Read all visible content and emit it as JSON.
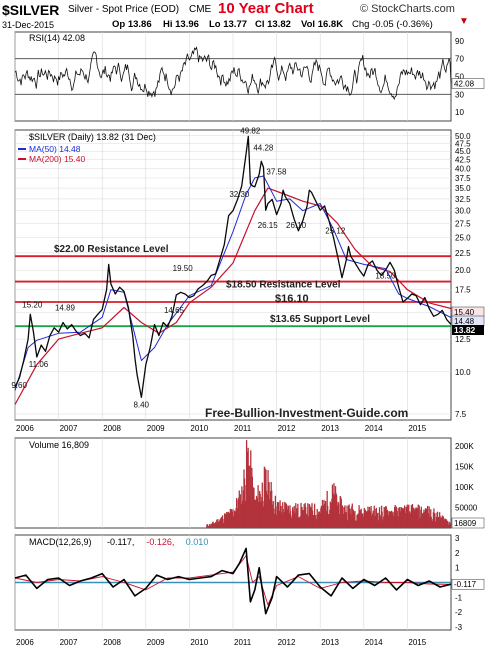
{
  "header": {
    "symbol": "$SILVER",
    "description": "Silver - Spot Price (EOD)",
    "exchange": "CME",
    "date": "31-Dec-2015",
    "chart_title": "10 Year Chart",
    "watermark": "© StockCharts.com",
    "quote": {
      "open": "Op 13.86",
      "high": "Hi 13.96",
      "low": "Lo 13.77",
      "close": "Cl 13.82",
      "volume": "Vol 16.8K",
      "change": "Chg -0.05 (-0.36%)"
    }
  },
  "site": "Free-Bullion-Investment-Guide.com",
  "colors": {
    "price": "#0a0a0a",
    "ma50": "#1f2bd6",
    "ma200": "#c8102e",
    "resistance": "#d81e2b",
    "support": "#1aa34a",
    "volume": "#b3333c",
    "macd": "#000000",
    "signal": "#c8102e",
    "histogram": "#3a8fb5",
    "grid": "#d9d9d9",
    "title": "#e0001b"
  },
  "chart_data": [
    {
      "type": "line",
      "panel": "rsi",
      "title": "RSI(14) 42.08",
      "ylim": [
        0,
        100
      ],
      "yticks": [
        10,
        30,
        50,
        70,
        90
      ],
      "reference_lines": [
        30,
        70
      ],
      "last_value": 42.08,
      "last_label": "42.08"
    },
    {
      "type": "line",
      "panel": "price",
      "title": "$SILVER (Daily) 13.82 (31 Dec)",
      "legend": [
        {
          "name": "MA(50) 14.48",
          "color": "#1f2bd6"
        },
        {
          "name": "MA(200) 15.40",
          "color": "#c8102e"
        }
      ],
      "scale": "log",
      "ylim": [
        7.2,
        52
      ],
      "yticks": [
        7.5,
        10.0,
        12.5,
        15.0,
        17.5,
        20.0,
        22.5,
        25.0,
        27.5,
        30.0,
        32.5,
        35.0,
        37.5,
        40.0,
        42.5,
        45.0,
        47.5,
        50.0
      ],
      "xlim": [
        2006.0,
        2016.0
      ],
      "x_tick_labels": [
        "2006",
        "2007",
        "2008",
        "2009",
        "2010",
        "2011",
        "2012",
        "2013",
        "2014",
        "2015"
      ],
      "series": [
        {
          "name": "$SILVER",
          "x": [
            2006.0,
            2006.1,
            2006.2,
            2006.3,
            2006.35,
            2006.42,
            2006.5,
            2006.6,
            2006.7,
            2006.8,
            2006.9,
            2007.0,
            2007.1,
            2007.2,
            2007.3,
            2007.4,
            2007.5,
            2007.6,
            2007.7,
            2007.8,
            2007.9,
            2008.0,
            2008.1,
            2008.15,
            2008.2,
            2008.3,
            2008.4,
            2008.5,
            2008.6,
            2008.7,
            2008.75,
            2008.8,
            2008.9,
            2009.0,
            2009.1,
            2009.2,
            2009.3,
            2009.4,
            2009.5,
            2009.6,
            2009.7,
            2009.8,
            2009.9,
            2010.0,
            2010.1,
            2010.2,
            2010.3,
            2010.4,
            2010.5,
            2010.6,
            2010.7,
            2010.8,
            2010.9,
            2011.0,
            2011.1,
            2011.2,
            2011.3,
            2011.35,
            2011.4,
            2011.45,
            2011.5,
            2011.6,
            2011.65,
            2011.7,
            2011.75,
            2011.8,
            2011.9,
            2012.0,
            2012.1,
            2012.15,
            2012.2,
            2012.3,
            2012.4,
            2012.5,
            2012.6,
            2012.7,
            2012.75,
            2012.8,
            2012.9,
            2013.0,
            2013.1,
            2013.2,
            2013.3,
            2013.4,
            2013.5,
            2013.6,
            2013.65,
            2013.7,
            2013.8,
            2013.9,
            2014.0,
            2014.1,
            2014.2,
            2014.3,
            2014.4,
            2014.5,
            2014.6,
            2014.7,
            2014.8,
            2014.9,
            2015.0,
            2015.1,
            2015.2,
            2015.3,
            2015.4,
            2015.5,
            2015.6,
            2015.7,
            2015.8,
            2015.9,
            2016.0
          ],
          "values": [
            9.0,
            9.6,
            10.8,
            12.5,
            14.8,
            13.2,
            11.06,
            12.0,
            11.5,
            12.8,
            13.5,
            13.1,
            14.0,
            13.4,
            13.8,
            13.2,
            12.8,
            13.0,
            12.6,
            14.3,
            14.8,
            15.3,
            17.5,
            20.8,
            18.2,
            17.0,
            17.8,
            17.3,
            15.5,
            12.8,
            11.0,
            9.8,
            8.4,
            10.5,
            11.8,
            13.8,
            12.8,
            14.0,
            13.6,
            14.6,
            16.9,
            17.2,
            17.0,
            16.6,
            16.8,
            17.6,
            18.0,
            18.5,
            19.3,
            19.5,
            21.5,
            23.8,
            29.0,
            30.0,
            32.3,
            35.5,
            44.28,
            49.82,
            36.0,
            35.5,
            35.3,
            38.5,
            42.0,
            40.3,
            30.1,
            31.5,
            32.4,
            29.2,
            31.5,
            34.5,
            33.0,
            31.5,
            28.4,
            26.15,
            28.0,
            31.0,
            34.5,
            34.0,
            32.0,
            30.1,
            31.0,
            28.1,
            25.12,
            22.0,
            19.0,
            21.5,
            23.5,
            22.0,
            21.0,
            20.0,
            19.2,
            20.8,
            21.3,
            20.0,
            19.3,
            20.0,
            21.1,
            20.0,
            17.8,
            16.1,
            16.5,
            17.0,
            16.8,
            15.8,
            16.6,
            15.4,
            14.6,
            14.8,
            15.2,
            14.3,
            13.82
          ]
        },
        {
          "name": "MA(50) 14.48",
          "x": [
            2006.0,
            2006.3,
            2006.5,
            2007.0,
            2007.5,
            2008.0,
            2008.2,
            2008.5,
            2008.9,
            2009.2,
            2009.5,
            2010.0,
            2010.5,
            2011.0,
            2011.3,
            2011.5,
            2011.7,
            2012.0,
            2012.3,
            2012.6,
            2013.0,
            2013.3,
            2013.6,
            2014.0,
            2014.5,
            2014.8,
            2015.0,
            2015.5,
            2016.0
          ],
          "values": [
            8.8,
            11.8,
            12.4,
            13.0,
            13.1,
            14.5,
            17.5,
            17.2,
            10.8,
            11.8,
            13.8,
            16.8,
            18.0,
            26.0,
            33.5,
            37.5,
            38.0,
            32.0,
            32.5,
            30.0,
            31.5,
            26.5,
            21.5,
            20.8,
            20.2,
            17.0,
            16.5,
            15.6,
            14.48
          ]
        },
        {
          "name": "MA(200) 15.40",
          "x": [
            2006.0,
            2006.5,
            2007.0,
            2007.5,
            2008.0,
            2008.5,
            2008.9,
            2009.3,
            2009.7,
            2010.0,
            2010.5,
            2011.0,
            2011.5,
            2011.8,
            2012.2,
            2012.6,
            2013.0,
            2013.4,
            2013.8,
            2014.2,
            2014.6,
            2015.0,
            2015.5,
            2016.0
          ],
          "values": [
            8.0,
            10.5,
            12.5,
            13.0,
            13.5,
            15.5,
            14.0,
            13.0,
            14.0,
            16.0,
            17.8,
            21.0,
            30.0,
            35.0,
            33.5,
            32.0,
            31.0,
            27.5,
            23.0,
            20.5,
            19.8,
            17.5,
            16.0,
            15.4
          ]
        }
      ],
      "horizontal_levels": [
        {
          "label": "$22.00 Resistance Level",
          "value": 22.0,
          "color": "#d81e2b"
        },
        {
          "label": "$18.50 Resistance Level",
          "value": 18.5,
          "color": "#d81e2b"
        },
        {
          "label": "$16.10",
          "value": 16.1,
          "color": "#d81e2b"
        },
        {
          "label": "$13.65 Support Level",
          "value": 13.65,
          "color": "#1aa34a"
        }
      ],
      "annotations": [
        {
          "text": "9.60",
          "x": 2006.1,
          "y": 9.6
        },
        {
          "text": "11.06",
          "x": 2006.5,
          "y": 11.06
        },
        {
          "text": "14.89",
          "x": 2007.1,
          "y": 14.89
        },
        {
          "text": "15.20",
          "x": 2006.35,
          "y": 15.2
        },
        {
          "text": "8.40",
          "x": 2008.9,
          "y": 8.4
        },
        {
          "text": "19.50",
          "x": 2009.8,
          "y": 19.5
        },
        {
          "text": "14.65",
          "x": 2009.6,
          "y": 14.65
        },
        {
          "text": "32.30",
          "x": 2011.1,
          "y": 32.3
        },
        {
          "text": "49.82",
          "x": 2011.35,
          "y": 49.82
        },
        {
          "text": "44.28",
          "x": 2011.65,
          "y": 44.28
        },
        {
          "text": "37.58",
          "x": 2011.95,
          "y": 37.58
        },
        {
          "text": "26.15",
          "x": 2011.75,
          "y": 26.15
        },
        {
          "text": "26.10",
          "x": 2012.4,
          "y": 26.1
        },
        {
          "text": "25.12",
          "x": 2013.3,
          "y": 25.12
        },
        {
          "text": "18.50",
          "x": 2014.45,
          "y": 18.5
        }
      ],
      "right_labels": [
        "15.40",
        "14.48",
        "13.82"
      ]
    },
    {
      "type": "bar",
      "panel": "volume",
      "title": "Volume 16,809",
      "ylim": [
        0,
        220000
      ],
      "yticks": [
        50000,
        100000,
        150000,
        200000
      ],
      "ytick_labels": [
        "50000",
        "100K",
        "150K",
        "200K"
      ],
      "x": [
        2006.0,
        2006.5,
        2007.0,
        2007.5,
        2008.0,
        2008.5,
        2009.0,
        2009.5,
        2010.0,
        2010.5,
        2011.0,
        2011.2,
        2011.35,
        2011.5,
        2011.75,
        2012.0,
        2012.5,
        2013.0,
        2013.3,
        2013.5,
        2014.0,
        2014.5,
        2015.0,
        2015.5,
        2016.0
      ],
      "values": [
        0,
        0,
        0,
        0,
        0,
        0,
        0,
        0,
        0,
        10000,
        45000,
        90000,
        205000,
        70000,
        130000,
        60000,
        50000,
        50000,
        95000,
        55000,
        45000,
        45000,
        48000,
        45000,
        16809
      ],
      "last_label": "16809"
    },
    {
      "type": "line",
      "panel": "macd",
      "title": "MACD(12,26,9)",
      "title_values": [
        {
          "text": "-0.117,",
          "color": "#000000"
        },
        {
          "text": "-0.126,",
          "color": "#c8102e"
        },
        {
          "text": "0.010",
          "color": "#3a8fb5"
        }
      ],
      "ylim": [
        -3.2,
        3.2
      ],
      "yticks": [
        -3,
        -2,
        -1,
        0,
        1,
        2,
        3
      ],
      "last_label": "-0.117",
      "series": [
        {
          "name": "MACD",
          "x": [
            2006.0,
            2006.25,
            2006.5,
            2006.75,
            2007.0,
            2007.25,
            2007.5,
            2007.75,
            2008.0,
            2008.25,
            2008.5,
            2008.75,
            2009.0,
            2009.25,
            2009.5,
            2009.75,
            2010.0,
            2010.25,
            2010.5,
            2010.75,
            2011.0,
            2011.15,
            2011.3,
            2011.4,
            2011.5,
            2011.6,
            2011.75,
            2011.9,
            2012.0,
            2012.25,
            2012.5,
            2012.75,
            2013.0,
            2013.25,
            2013.5,
            2013.75,
            2014.0,
            2014.25,
            2014.5,
            2014.75,
            2015.0,
            2015.25,
            2015.5,
            2015.75,
            2016.0
          ],
          "values": [
            0.3,
            0.5,
            -0.4,
            0.2,
            0.3,
            -0.2,
            0.1,
            0.3,
            0.6,
            -0.3,
            0.2,
            -0.9,
            -0.4,
            0.5,
            0.2,
            0.4,
            0.2,
            0.3,
            0.4,
            0.8,
            0.6,
            1.3,
            2.3,
            -1.3,
            -0.5,
            1.0,
            -2.1,
            -1.0,
            0.4,
            -0.3,
            0.5,
            0.6,
            -0.3,
            -0.9,
            0.3,
            -0.4,
            0.2,
            -0.2,
            0.3,
            -0.5,
            0.2,
            -0.2,
            0.1,
            -0.3,
            -0.117
          ]
        },
        {
          "name": "Signal",
          "x": [
            2006.0,
            2006.5,
            2007.0,
            2007.5,
            2008.0,
            2008.5,
            2009.0,
            2009.5,
            2010.0,
            2010.5,
            2011.0,
            2011.3,
            2011.45,
            2011.6,
            2011.8,
            2012.0,
            2012.5,
            2013.0,
            2013.5,
            2014.0,
            2014.5,
            2015.0,
            2015.5,
            2016.0
          ],
          "values": [
            0.3,
            0.0,
            0.2,
            0.1,
            0.4,
            0.0,
            -0.5,
            0.3,
            0.3,
            0.5,
            0.7,
            1.8,
            0.0,
            0.4,
            -1.5,
            -0.2,
            0.4,
            -0.4,
            0.0,
            0.1,
            0.0,
            0.0,
            -0.1,
            -0.126
          ]
        }
      ]
    }
  ]
}
